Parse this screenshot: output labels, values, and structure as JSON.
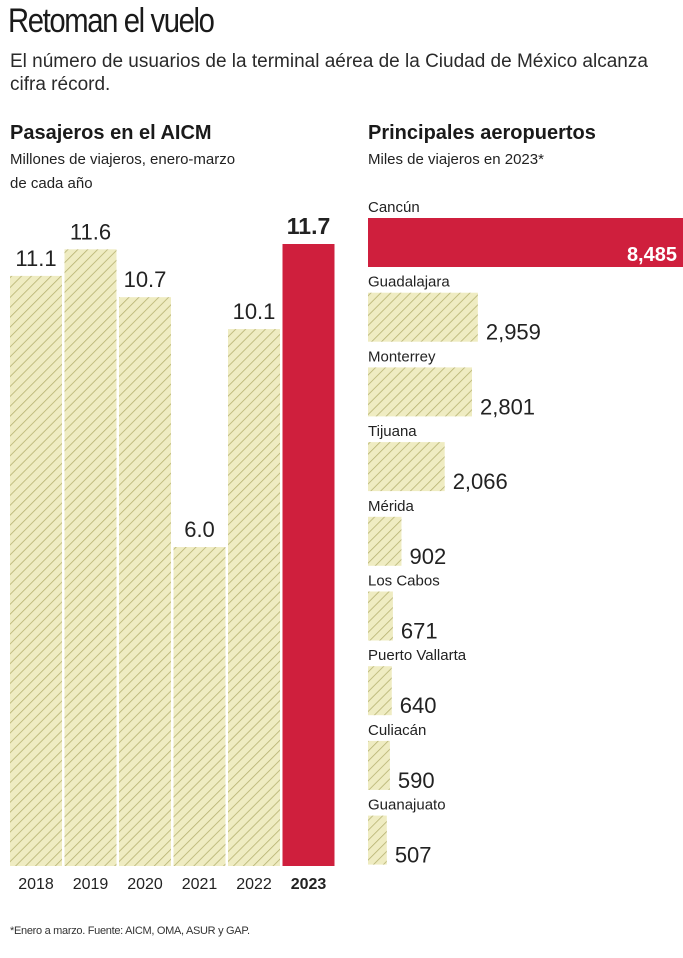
{
  "headline": "Retoman el vuelo",
  "subheadline": "El número de usuarios de la terminal aérea de la Ciudad de México alcanza cifra récord.",
  "colors": {
    "hatch_fill": "#efecc2",
    "hatch_line": "#b6b271",
    "highlight": "#cf1f3d",
    "text": "#222222"
  },
  "chart_data": [
    {
      "type": "bar",
      "title": "Pasajeros en el AICM",
      "subtitle": "Millones de viajeros, enero-marzo de cada año",
      "categories": [
        "2018",
        "2019",
        "2020",
        "2021",
        "2022",
        "2023"
      ],
      "values": [
        11.1,
        11.6,
        10.7,
        6.0,
        10.1,
        11.7
      ],
      "value_labels": [
        "11.1",
        "11.6",
        "10.7",
        "6.0",
        "10.1",
        "11.7"
      ],
      "highlight_index": 5,
      "orientation": "vertical",
      "ylim": [
        0,
        11.7
      ],
      "grid": false
    },
    {
      "type": "bar",
      "title": "Principales aeropuertos",
      "subtitle": "Miles de viajeros en 2023*",
      "categories": [
        "Cancún",
        "Guadalajara",
        "Monterrey",
        "Tijuana",
        "Mérida",
        "Los Cabos",
        "Puerto Vallarta",
        "Culiacán",
        "Guanajuato"
      ],
      "values": [
        8485,
        2959,
        2801,
        2066,
        902,
        671,
        640,
        590,
        507
      ],
      "value_labels": [
        "8,485",
        "2,959",
        "2,801",
        "2,066",
        "902",
        "671",
        "640",
        "590",
        "507"
      ],
      "highlight_index": 0,
      "orientation": "horizontal",
      "xlim": [
        0,
        8485
      ],
      "grid": false
    }
  ],
  "footnote": "*Enero a marzo. Fuente: AICM, OMA, ASUR y GAP."
}
